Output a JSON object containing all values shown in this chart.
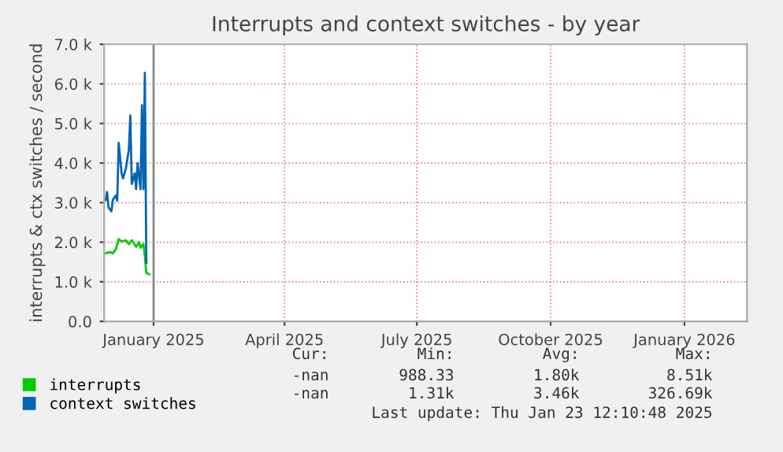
{
  "chart_data": {
    "type": "line",
    "title": "Interrupts and context switches - by year",
    "ylabel": "interrupts & ctx switches / second",
    "xlim": [
      "2024-11-28",
      "2026-02-13"
    ],
    "ylim": [
      0,
      7
    ],
    "xticks": [
      {
        "value": "2025-01-01",
        "label": "January 2025"
      },
      {
        "value": "2025-04-01",
        "label": "April 2025"
      },
      {
        "value": "2025-07-01",
        "label": "July 2025"
      },
      {
        "value": "2025-10-01",
        "label": "October 2025"
      },
      {
        "value": "2026-01-01",
        "label": "January 2026"
      }
    ],
    "yticks": [
      {
        "value": 0,
        "label": "0.0"
      },
      {
        "value": 1,
        "label": "1.0 k"
      },
      {
        "value": 2,
        "label": "2.0 k"
      },
      {
        "value": 3,
        "label": "3.0 k"
      },
      {
        "value": 4,
        "label": "4.0 k"
      },
      {
        "value": 5,
        "label": "5.0 k"
      },
      {
        "value": 6,
        "label": "6.0 k"
      },
      {
        "value": 7,
        "label": "7.0 k"
      }
    ],
    "grid": true,
    "legend": "bottom",
    "marker": "none",
    "line_style": "solid",
    "series": [
      {
        "name": "interrupts",
        "color": "#00cc00",
        "x": [
          "2024-11-29",
          "2024-12-02",
          "2024-12-04",
          "2024-12-06",
          "2024-12-08",
          "2024-12-10",
          "2024-12-13",
          "2024-12-15",
          "2024-12-17",
          "2024-12-20",
          "2024-12-22",
          "2024-12-23",
          "2024-12-25",
          "2024-12-26",
          "2024-12-27",
          "2024-12-29"
        ],
        "values": [
          1.72,
          1.75,
          1.72,
          1.82,
          2.08,
          2.02,
          2.05,
          1.95,
          2.05,
          1.88,
          2.0,
          1.86,
          1.95,
          1.64,
          1.22,
          1.19
        ]
      },
      {
        "name": "context switches",
        "color": "#0066b3",
        "x": [
          "2024-11-29",
          "2024-11-30",
          "2024-12-01",
          "2024-12-03",
          "2024-12-04",
          "2024-12-06",
          "2024-12-07",
          "2024-12-08",
          "2024-12-10",
          "2024-12-11",
          "2024-12-13",
          "2024-12-15",
          "2024-12-16",
          "2024-12-17",
          "2024-12-19",
          "2024-12-20",
          "2024-12-21",
          "2024-12-23",
          "2024-12-24",
          "2024-12-25",
          "2024-12-26",
          "2024-12-27"
        ],
        "values": [
          3.07,
          3.27,
          2.88,
          2.78,
          3.07,
          3.18,
          3.05,
          4.51,
          3.74,
          3.61,
          3.87,
          4.34,
          5.2,
          3.47,
          3.74,
          3.34,
          4.0,
          3.34,
          5.46,
          3.34,
          6.28,
          1.48
        ]
      }
    ],
    "ref_lines": [
      {
        "axis": "x",
        "value": "2025-01-01",
        "color": "#888888",
        "line_style": "solid"
      }
    ],
    "annotations": [
      "Cur:",
      "Min:",
      "Avg:",
      "Max:",
      "-nan",
      "988.33",
      "1.80k",
      "8.51k",
      "-nan",
      "1.31k",
      "3.46k",
      "326.69k",
      "Last update: Thu Jan 23 12:10:48 2025"
    ]
  }
}
